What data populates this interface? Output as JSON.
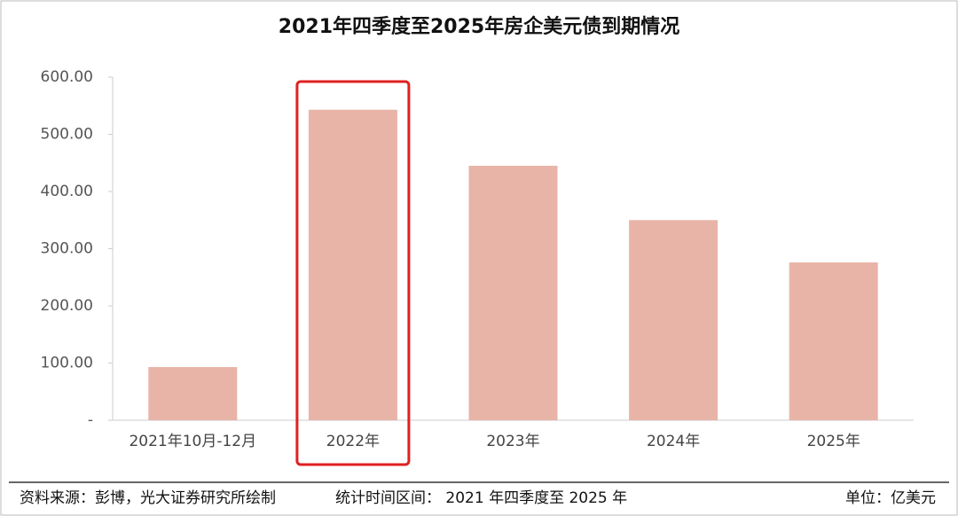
{
  "chart_data": {
    "type": "bar",
    "title": "2021年四季度至2025年房企美元债到期情况",
    "categories": [
      "2021年10月-12月",
      "2022年",
      "2023年",
      "2024年",
      "2025年"
    ],
    "values": [
      93,
      543,
      445,
      350,
      276
    ],
    "color": "#e8b4a8",
    "ylim": [
      0,
      600
    ],
    "yticks": [
      {
        "value": 0,
        "label": "-"
      },
      {
        "value": 100,
        "label": "100.00"
      },
      {
        "value": 200,
        "label": "200.00"
      },
      {
        "value": 300,
        "label": "300.00"
      },
      {
        "value": 400,
        "label": "400.00"
      },
      {
        "value": 500,
        "label": "500.00"
      },
      {
        "value": 600,
        "label": "600.00"
      }
    ],
    "grid": false,
    "source": "资料来源：彭博，光大证券研究所绘制",
    "period": "统计时间区间：  2021 年四季度至 2025 年",
    "unit": "单位：亿美元"
  }
}
